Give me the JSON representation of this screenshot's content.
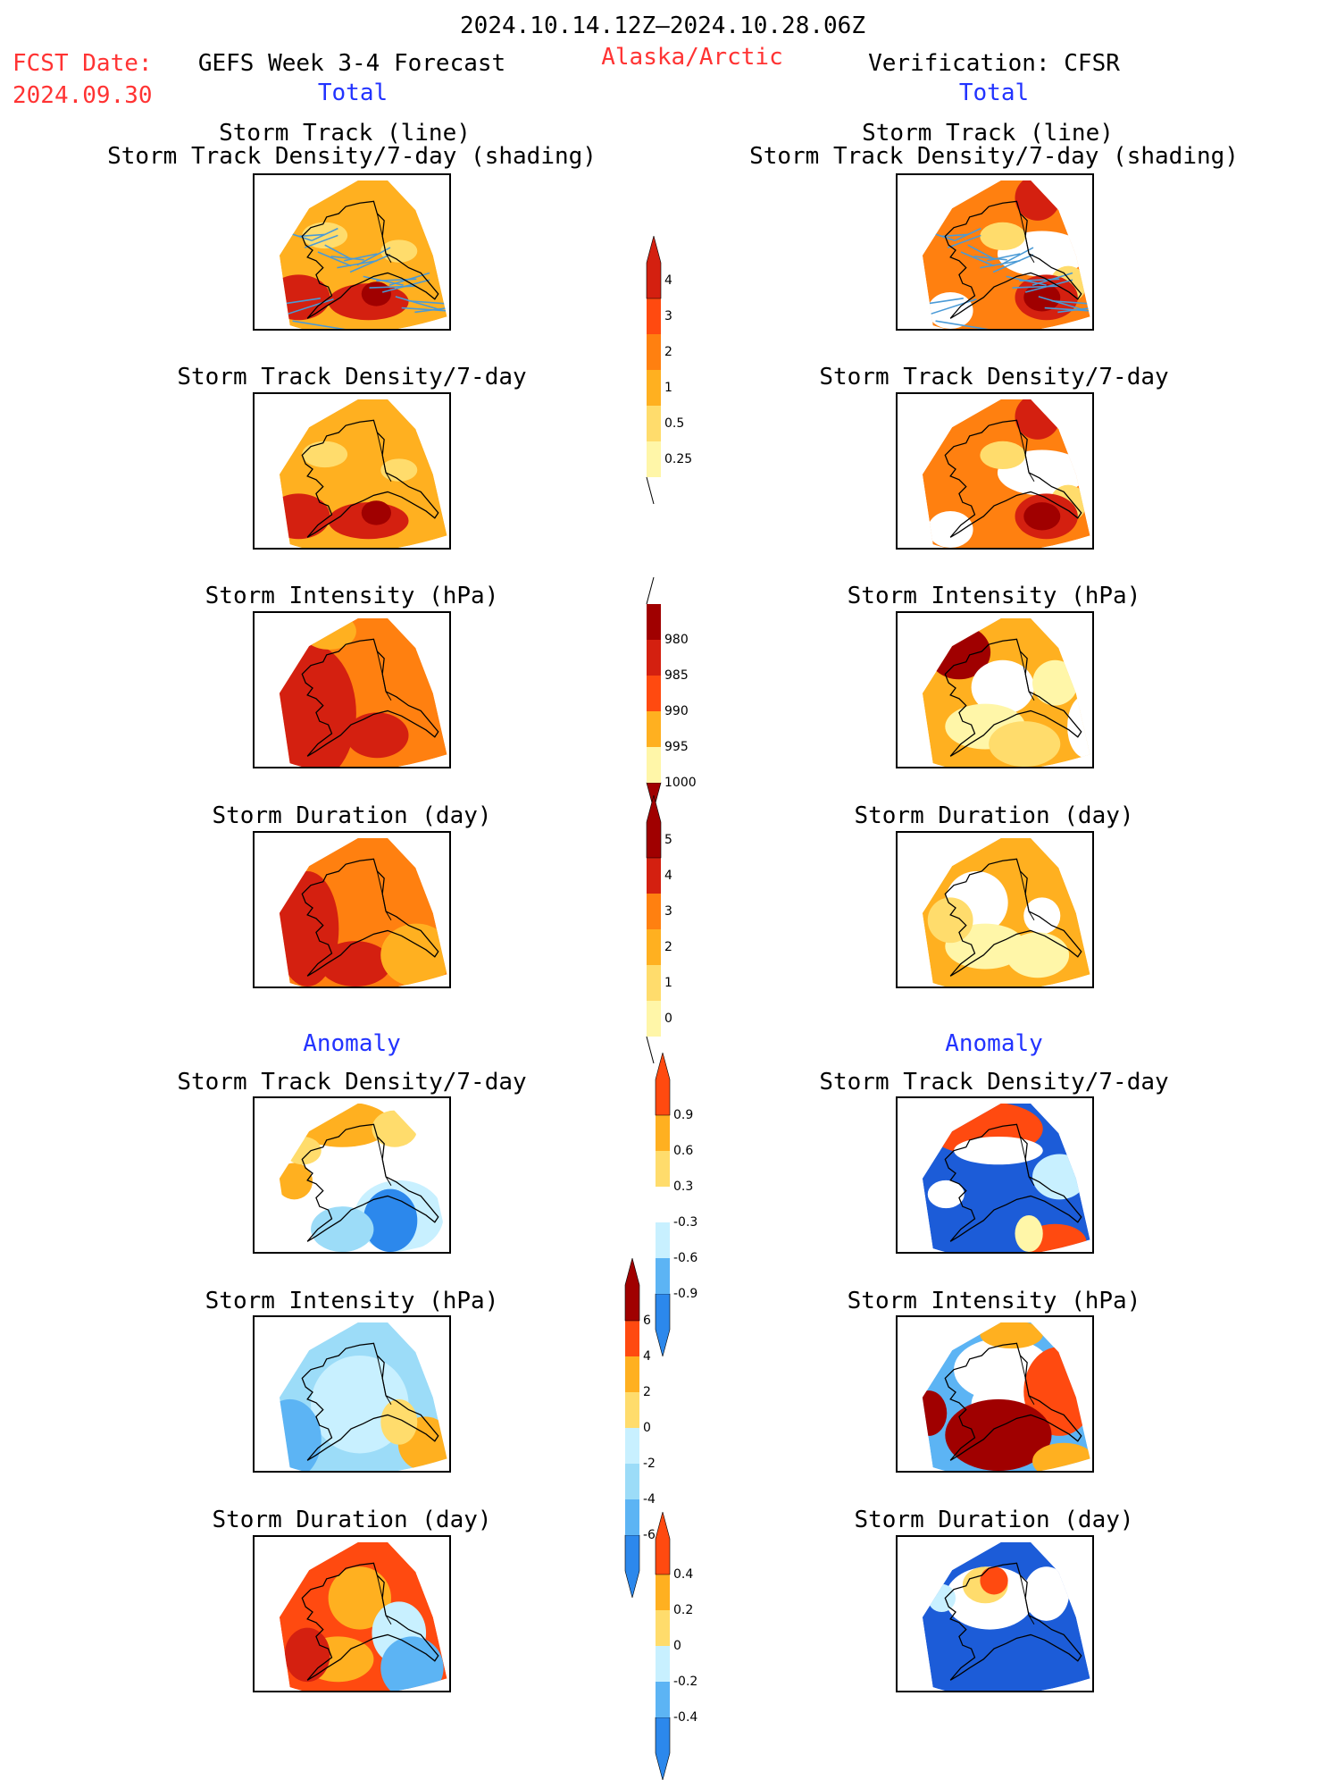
{
  "header": {
    "date_range": "2024.10.14.12Z–2024.10.28.06Z",
    "fcst_label": "FCST Date:",
    "fcst_date": "2024.09.30",
    "left_title": "GEFS Week 3-4 Forecast",
    "region": "Alaska/Arctic",
    "right_title": "Verification: CFSR",
    "total_left": "Total",
    "total_right": "Total",
    "anomaly_left": "Anomaly",
    "anomaly_right": "Anomaly"
  },
  "panels": {
    "track_line": "Storm Track (line)",
    "track_shading": "Storm Track Density/7-day (shading)",
    "density": "Storm Track Density/7-day",
    "intensity": "Storm Intensity (hPa)",
    "duration": "Storm Duration (day)"
  },
  "colorbars": {
    "density_total": [
      "0.25",
      "0.5",
      "1",
      "2",
      "3",
      "4"
    ],
    "intensity_total": [
      "980",
      "985",
      "990",
      "995",
      "1000"
    ],
    "duration_total": [
      "0",
      "1",
      "2",
      "3",
      "4",
      "5"
    ],
    "density_anom": [
      "-0.9",
      "-0.6",
      "-0.3",
      "0.3",
      "0.6",
      "0.9"
    ],
    "intensity_anom": [
      "-6",
      "-4",
      "-2",
      "0",
      "2",
      "4",
      "6"
    ],
    "duration_anom": [
      "-0.4",
      "-0.2",
      "0",
      "0.2",
      "0.4"
    ]
  },
  "colors": {
    "c1": "#fff6a8",
    "c2": "#ffdc6c",
    "c3": "#ffb020",
    "c4": "#ff8010",
    "c5": "#ff4a10",
    "c6": "#d42010",
    "c7": "#a00000",
    "b1": "#c8f0ff",
    "b2": "#9cdcf8",
    "b3": "#5cb4f4",
    "b4": "#2c88ec",
    "b5": "#1c5cd8",
    "track": "#4a9ad6"
  }
}
